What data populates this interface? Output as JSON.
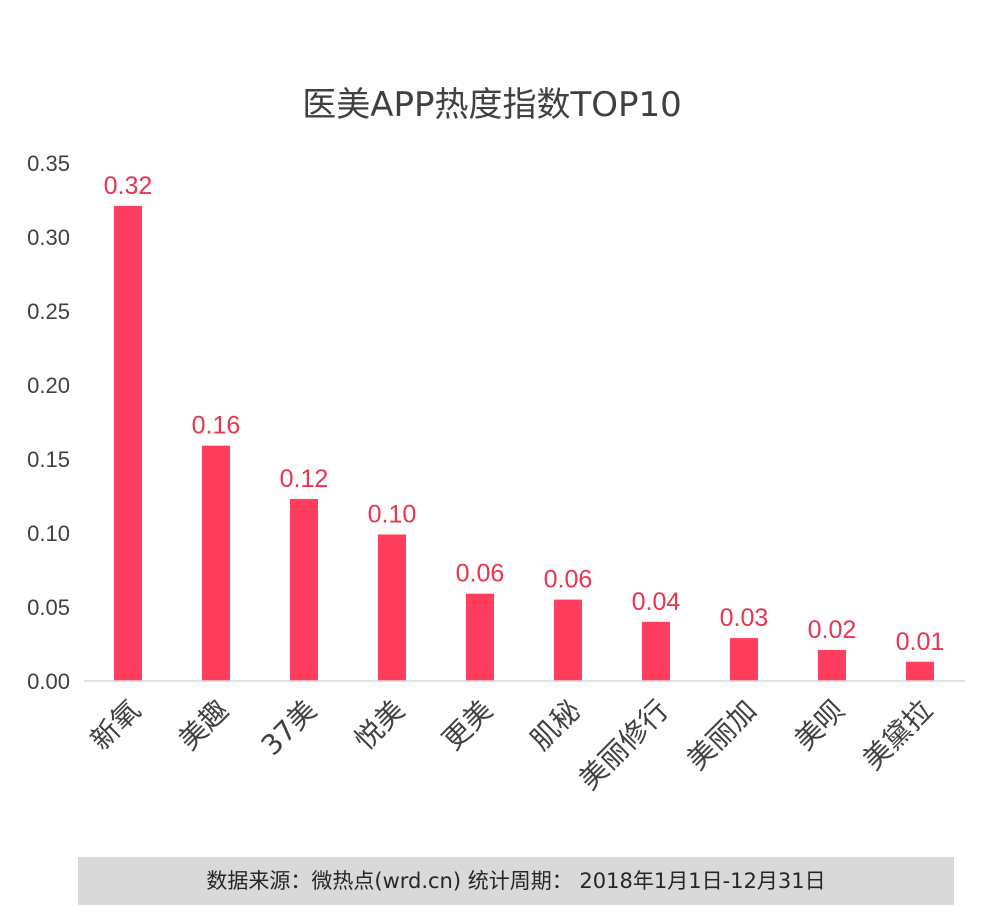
{
  "footer": {
    "text": "数据来源：微热点(wrd.cn)  统计周期： 2018年1月1日-12月31日"
  },
  "chart_data": {
    "type": "bar",
    "title": "医美APP热度指数TOP10",
    "categories": [
      "新氧",
      "美趣",
      "37美",
      "悦美",
      "更美",
      "肌秘",
      "美丽修行",
      "美丽加",
      "美呗",
      "美黛拉"
    ],
    "values": [
      0.321,
      0.159,
      0.123,
      0.099,
      0.059,
      0.055,
      0.04,
      0.029,
      0.021,
      0.013
    ],
    "data_labels": [
      "0.32",
      "0.16",
      "0.12",
      "0.10",
      "0.06",
      "0.06",
      "0.04",
      "0.03",
      "0.02",
      "0.01"
    ],
    "ylim": [
      0,
      0.35
    ],
    "yticks": [
      "0.00",
      "0.05",
      "0.10",
      "0.15",
      "0.20",
      "0.25",
      "0.30",
      "0.35"
    ],
    "xlabel": "",
    "ylabel": "",
    "grid": false,
    "legend": "none",
    "bar_color": "#ff3d5c",
    "label_color": "#e8344f"
  }
}
